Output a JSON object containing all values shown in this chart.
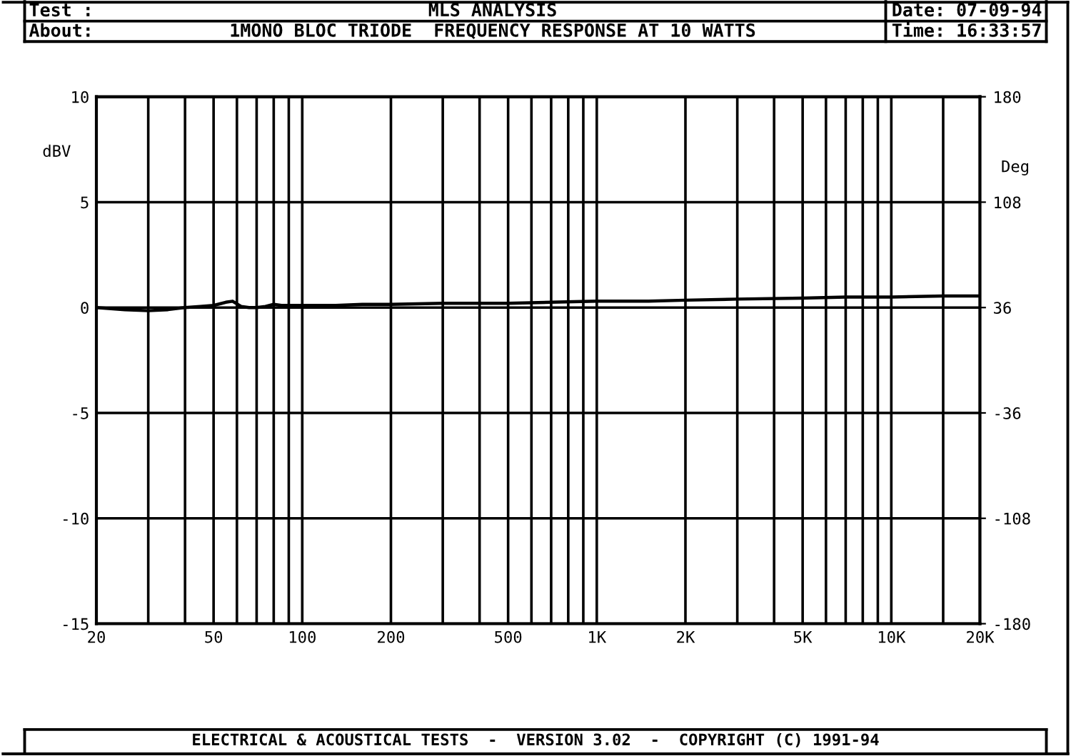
{
  "chart_data": {
    "type": "line",
    "annotations": [
      "Test :",
      "MLS ANALYSIS",
      "Date: 07-09-94",
      "About:",
      "1MONO BLOC TRIODE  FREQUENCY RESPONSE AT 10 WATTS",
      "Time: 16:33:57",
      "ELECTRICAL & ACOUSTICAL TESTS  -  VERSION 3.02  -  COPYRIGHT (C) 1991-94"
    ],
    "ylabel": "dBV",
    "y2label": "Deg",
    "log": "x",
    "x": [
      20,
      25,
      30,
      35,
      40,
      45,
      50,
      55,
      58,
      62,
      66,
      70,
      75,
      80,
      85,
      90,
      100,
      130,
      160,
      200,
      300,
      500,
      700,
      1000,
      1500,
      2000,
      3000,
      5000,
      7000,
      10000,
      15000,
      20000
    ],
    "series": [
      {
        "color": "#000000",
        "values": [
          0,
          -0.1,
          -0.15,
          -0.1,
          0,
          0.05,
          0.1,
          0.25,
          0.3,
          0.05,
          0,
          0,
          0.05,
          0.15,
          0.1,
          0.1,
          0.1,
          0.1,
          0.15,
          0.15,
          0.2,
          0.2,
          0.25,
          0.3,
          0.3,
          0.35,
          0.4,
          0.45,
          0.5,
          0.5,
          0.55,
          0.55
        ]
      }
    ],
    "xlim": [
      20,
      20000
    ],
    "xticks": [
      20,
      {
        "value": 30,
        "label": null
      },
      {
        "value": 40,
        "label": null
      },
      50,
      {
        "value": 60,
        "label": null
      },
      {
        "value": 70,
        "label": null
      },
      {
        "value": 80,
        "label": null
      },
      {
        "value": 90,
        "label": null
      },
      100,
      200,
      {
        "value": 300,
        "label": null
      },
      {
        "value": 400,
        "label": null
      },
      500,
      {
        "value": 600,
        "label": null
      },
      {
        "value": 700,
        "label": null
      },
      {
        "value": 800,
        "label": null
      },
      {
        "value": 900,
        "label": null
      },
      {
        "value": 1000,
        "label": "1K"
      },
      {
        "value": 2000,
        "label": "2K"
      },
      {
        "value": 3000,
        "label": null
      },
      {
        "value": 4000,
        "label": null
      },
      {
        "value": 5000,
        "label": "5K"
      },
      {
        "value": 6000,
        "label": null
      },
      {
        "value": 7000,
        "label": null
      },
      {
        "value": 8000,
        "label": null
      },
      {
        "value": 9000,
        "label": null
      },
      {
        "value": 10000,
        "label": "10K"
      },
      {
        "value": 15000,
        "label": null
      },
      {
        "value": 20000,
        "label": "20K"
      }
    ],
    "ylim": [
      -15,
      10
    ],
    "yticks": [
      -15,
      -10,
      -5,
      0,
      5,
      10
    ],
    "y2lim": [
      -180,
      180
    ],
    "y2ticks": [
      -180,
      -108,
      -36,
      36,
      108,
      180
    ],
    "grid": true,
    "marker": "none",
    "line_style": "solid"
  }
}
